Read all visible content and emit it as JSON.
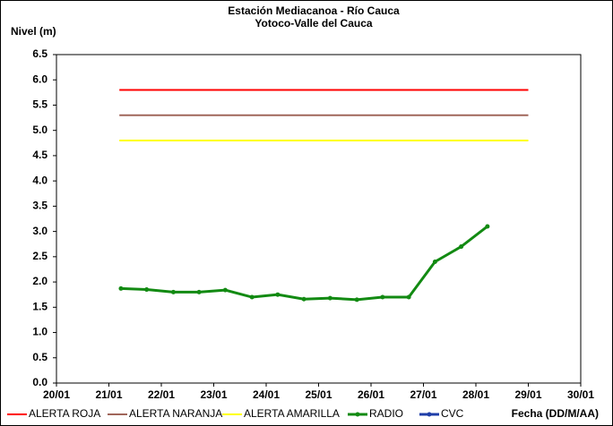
{
  "chart_data": {
    "type": "line",
    "title": "Estación Mediacanoa - Río Cauca",
    "subtitle": "Yotoco-Valle del Cauca",
    "y_label": "Nivel (m)",
    "x_label": "Fecha (DD/M/AA)",
    "xlim": [
      0,
      10
    ],
    "xticks": [
      {
        "value": 0,
        "label": "20/01"
      },
      {
        "value": 1,
        "label": "21/01"
      },
      {
        "value": 2,
        "label": "22/01"
      },
      {
        "value": 3,
        "label": "23/01"
      },
      {
        "value": 4,
        "label": "24/01"
      },
      {
        "value": 5,
        "label": "25/01"
      },
      {
        "value": 6,
        "label": "26/01"
      },
      {
        "value": 7,
        "label": "27/01"
      },
      {
        "value": 8,
        "label": "28/01"
      },
      {
        "value": 9,
        "label": "29/01"
      },
      {
        "value": 10,
        "label": "30/01"
      }
    ],
    "ylim": [
      0,
      6.5
    ],
    "yticks": [
      {
        "value": 0,
        "label": "0.0"
      },
      {
        "value": 0.5,
        "label": "0.5"
      },
      {
        "value": 1,
        "label": "1.0"
      },
      {
        "value": 1.5,
        "label": "1.5"
      },
      {
        "value": 2,
        "label": "2.0"
      },
      {
        "value": 2.5,
        "label": "2.5"
      },
      {
        "value": 3,
        "label": "3.0"
      },
      {
        "value": 3.5,
        "label": "3.5"
      },
      {
        "value": 4,
        "label": "4.0"
      },
      {
        "value": 4.5,
        "label": "4.5"
      },
      {
        "value": 5,
        "label": "5.0"
      },
      {
        "value": 5.5,
        "label": "5.5"
      },
      {
        "value": 6,
        "label": "6.0"
      },
      {
        "value": 6.5,
        "label": "6.5"
      }
    ],
    "grid": false,
    "legend": "bottom",
    "series": [
      {
        "name": "ALERTA ROJA",
        "color": "#ff0000",
        "x": [
          1.2,
          9.0
        ],
        "values": [
          5.8,
          5.8
        ],
        "markers": false
      },
      {
        "name": "ALERTA NARANJA",
        "color": "#a0665a",
        "x": [
          1.2,
          9.0
        ],
        "values": [
          5.3,
          5.3
        ],
        "markers": false
      },
      {
        "name": "ALERTA AMARILLA",
        "color": "#ffff00",
        "x": [
          1.2,
          9.0
        ],
        "values": [
          4.8,
          4.8
        ],
        "markers": false
      },
      {
        "name": "RADIO",
        "color": "#128a12",
        "markers": true,
        "x": [
          1.23,
          1.72,
          2.23,
          2.72,
          3.22,
          3.73,
          4.22,
          4.72,
          5.22,
          5.73,
          6.22,
          6.72,
          7.22,
          7.72,
          8.22
        ],
        "values": [
          1.87,
          1.85,
          1.8,
          1.8,
          1.84,
          1.7,
          1.75,
          1.66,
          1.68,
          1.65,
          1.7,
          1.7,
          2.4,
          2.7,
          3.1
        ]
      },
      {
        "name": "CVC",
        "color": "#1f3ea8",
        "x": [],
        "values": [],
        "markers": true
      }
    ]
  }
}
